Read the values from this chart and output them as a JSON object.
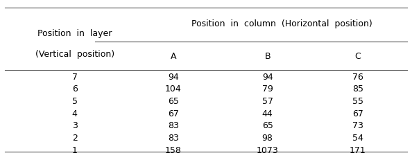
{
  "header_row1_col1": "Position in layer",
  "header_row1_col2": "Position in column (Horizontal position)",
  "header_row2_col1": "(Vertical position)",
  "header_row2_col2": "A",
  "header_row2_col3": "B",
  "header_row2_col4": "C",
  "rows": [
    [
      7,
      94,
      94,
      76
    ],
    [
      6,
      104,
      79,
      85
    ],
    [
      5,
      65,
      57,
      55
    ],
    [
      4,
      67,
      44,
      67
    ],
    [
      3,
      83,
      65,
      73
    ],
    [
      2,
      83,
      98,
      54
    ],
    [
      1,
      158,
      1073,
      171
    ]
  ],
  "bg_color": "#ffffff",
  "text_color": "#000000",
  "font_size": 9,
  "header_font_size": 9
}
